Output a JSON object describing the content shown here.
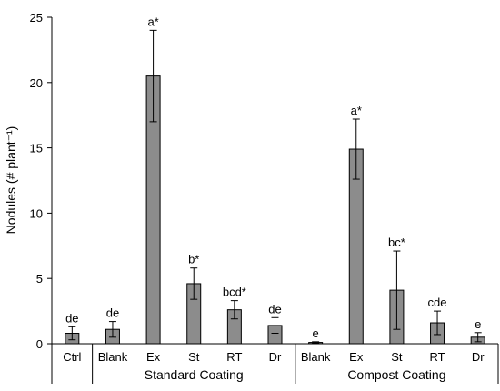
{
  "chart_data": {
    "type": "bar",
    "ylabel": "Nodules (# plant⁻¹)",
    "ylim": [
      0,
      25
    ],
    "yticks": [
      0,
      5,
      10,
      15,
      20,
      25
    ],
    "grid": false,
    "bar_color": "#8c8c8c",
    "bars": [
      {
        "category": "Ctrl",
        "group": "",
        "value": 0.8,
        "error": 0.5,
        "label": "de"
      },
      {
        "category": "Blank",
        "group": "Standard Coating",
        "value": 1.1,
        "error": 0.6,
        "label": "de"
      },
      {
        "category": "Ex",
        "group": "Standard Coating",
        "value": 20.5,
        "error": 3.5,
        "label": "a*"
      },
      {
        "category": "St",
        "group": "Standard Coating",
        "value": 4.6,
        "error": 1.2,
        "label": "b*"
      },
      {
        "category": "RT",
        "group": "Standard Coating",
        "value": 2.6,
        "error": 0.7,
        "label": "bcd*"
      },
      {
        "category": "Dr",
        "group": "Standard Coating",
        "value": 1.4,
        "error": 0.6,
        "label": "de"
      },
      {
        "category": "Blank",
        "group": "Compost Coating",
        "value": 0.1,
        "error": 0.05,
        "label": "e"
      },
      {
        "category": "Ex",
        "group": "Compost Coating",
        "value": 14.9,
        "error": 2.3,
        "label": "a*"
      },
      {
        "category": "St",
        "group": "Compost Coating",
        "value": 4.1,
        "error": 3.0,
        "label": "bc*"
      },
      {
        "category": "RT",
        "group": "Compost Coating",
        "value": 1.6,
        "error": 0.9,
        "label": "cde"
      },
      {
        "category": "Dr",
        "group": "Compost Coating",
        "value": 0.5,
        "error": 0.35,
        "label": "e"
      }
    ],
    "groups": [
      {
        "name": "Standard Coating",
        "from": 1,
        "to": 5
      },
      {
        "name": "Compost Coating",
        "from": 6,
        "to": 10
      }
    ]
  }
}
